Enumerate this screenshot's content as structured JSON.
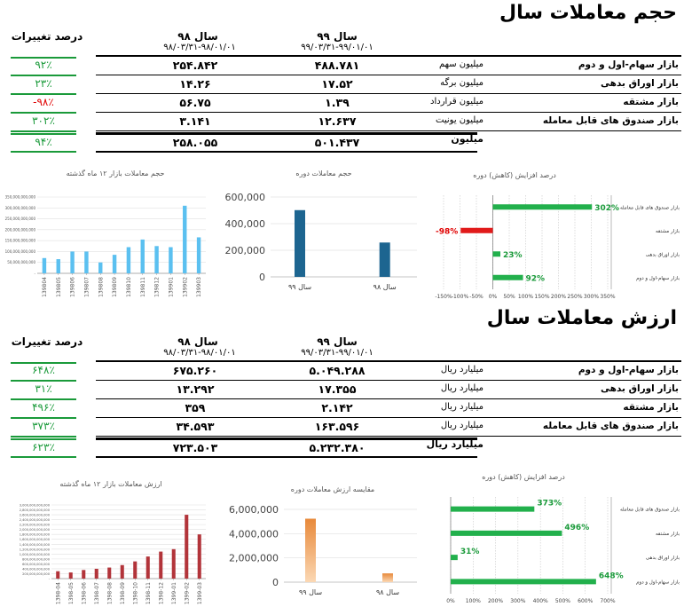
{
  "colors": {
    "green": "#1a9a3a",
    "red": "#e00000",
    "blue_light": "#5bc0f0",
    "blue_dark": "#1d6590",
    "green_bar": "#22b04c",
    "red_bar": "#e11a1a",
    "maroon": "#b2343a",
    "orange": "#f0a050"
  },
  "volume": {
    "title": "حجم معاملات سال",
    "change_header": "درصد تغییرات",
    "col98": {
      "year": "سال ۹۸",
      "range": "۹۸/۰۳/۳۱-۹۸/۰۱/۰۱"
    },
    "col99": {
      "year": "سال ۹۹",
      "range": "۹۹/۰۳/۳۱-۹۹/۰۱/۰۱"
    },
    "rows": [
      {
        "label": "بازار سهام-اول و دوم",
        "unit": "میلیون سهم",
        "v99": "۴۸۸.۷۸۱",
        "v98": "۲۵۴.۸۴۲",
        "pct": "۹۲٪",
        "neg": false
      },
      {
        "label": "بازار اوراق بدهی",
        "unit": "میلیون برگه",
        "v99": "۱۷.۵۲",
        "v98": "۱۴.۲۶",
        "pct": "۲۳٪",
        "neg": false
      },
      {
        "label": "بازار مشتقه",
        "unit": "میلیون قرارداد",
        "v99": "۱.۳۹",
        "v98": "۵۶.۷۵",
        "pct": "-۹۸٪",
        "neg": true
      },
      {
        "label": "بازار صندوق های قابل معامله",
        "unit": "میلیون یونیت",
        "v99": "۱۲.۶۳۷",
        "v98": "۳.۱۴۱",
        "pct": "۳۰۲٪",
        "neg": false
      }
    ],
    "total": {
      "unit": "میلیون",
      "v99": "۵۰۱.۴۳۷",
      "v98": "۲۵۸.۰۵۵",
      "pct": "۹۴٪"
    }
  },
  "value": {
    "title": "ارزش معاملات سال",
    "change_header": "درصد تغییرات",
    "col98": {
      "year": "سال ۹۸",
      "range": "۹۸/۰۳/۳۱-۹۸/۰۱/۰۱"
    },
    "col99": {
      "year": "سال ۹۹",
      "range": "۹۹/۰۳/۳۱-۹۹/۰۱/۰۱"
    },
    "rows": [
      {
        "label": "بازار سهام-اول و دوم",
        "unit": "میلیارد ریال",
        "v99": "۵.۰۴۹.۲۸۸",
        "v98": "۶۷۵.۲۶۰",
        "pct": "۶۴۸٪"
      },
      {
        "label": "بازار اوراق بدهی",
        "unit": "میلیارد ریال",
        "v99": "۱۷.۳۵۵",
        "v98": "۱۳.۲۹۲",
        "pct": "۳۱٪"
      },
      {
        "label": "بازار مشتقه",
        "unit": "میلیارد ریال",
        "v99": "۲.۱۴۲",
        "v98": "۳۵۹",
        "pct": "۴۹۶٪"
      },
      {
        "label": "بازار صندوق های قابل معامله",
        "unit": "میلیارد ریال",
        "v99": "۱۶۳.۵۹۶",
        "v98": "۳۴.۵۹۳",
        "pct": "۳۷۳٪"
      }
    ],
    "total": {
      "unit": "میلیارد ریال",
      "v99": "۵.۲۳۲.۳۸۰",
      "v98": "۷۲۳.۵۰۳",
      "pct": "۶۲۳٪"
    }
  },
  "chart_data": [
    {
      "type": "bar",
      "title": "حجم معاملات بازار ۱۲ ماه گذشته",
      "categories": [
        "139804",
        "139805",
        "139806",
        "139807",
        "139808",
        "139809",
        "139810",
        "139811",
        "139812",
        "139901",
        "139902",
        "139903"
      ],
      "values": [
        70000000000,
        65000000000,
        100000000000,
        100000000000,
        50000000000,
        85000000000,
        120000000000,
        155000000000,
        125000000000,
        120000000000,
        310000000000,
        165000000000
      ],
      "ylim": [
        0,
        350000000000
      ],
      "yticks": [
        "350,000,000,000",
        "300,000,000,000",
        "250,000,000,000",
        "200,000,000,000",
        "150,000,000,000",
        "100,000,000,000",
        "50,000,000,000",
        "-"
      ]
    },
    {
      "type": "bar",
      "title": "حجم معاملات دوره",
      "categories": [
        "سال ۹۹",
        "سال ۹۸"
      ],
      "values": [
        501437,
        258055
      ],
      "ylim": [
        0,
        600000
      ],
      "yticks": [
        "600,000",
        "400,000",
        "200,000",
        "0"
      ]
    },
    {
      "type": "bar",
      "title": "درصد افزایش (کاهش) دوره",
      "orientation": "horizontal",
      "categories": [
        "بازار صندوق های قابل معامله",
        "بازار مشتقه",
        "بازار اوراق بدهی",
        "بازار سهام-اول و دوم"
      ],
      "values": [
        302,
        -98,
        23,
        92
      ],
      "labels": [
        "302%",
        "-98%",
        "23%",
        "92%"
      ],
      "xlim": [
        -150,
        350
      ],
      "xticks": [
        "-150%",
        "-100%",
        "-50%",
        "0%",
        "50%",
        "100%",
        "150%",
        "200%",
        "250%",
        "300%",
        "350%"
      ]
    },
    {
      "type": "bar",
      "title": "ارزش معاملات بازار ۱۲ ماه گذشته",
      "categories": [
        "1398-04",
        "1398-05",
        "1398-06",
        "1398-07",
        "1398-08",
        "1398-09",
        "1398-10",
        "1398-11",
        "1398-12",
        "1399-01",
        "1399-02",
        "1399-03"
      ],
      "values": [
        300000000000,
        250000000000,
        350000000000,
        400000000000,
        450000000000,
        550000000000,
        700000000000,
        900000000000,
        1100000000000,
        1200000000000,
        2600000000000,
        1800000000000
      ],
      "ylim": [
        0,
        3000000000000
      ],
      "yticks": [
        "3,000,000,000,000",
        "2,800,000,000,000",
        "2,600,000,000,000",
        "2,400,000,000,000",
        "2,200,000,000,000",
        "2,000,000,000,000",
        "1,800,000,000,000",
        "1,600,000,000,000",
        "1,400,000,000,000",
        "1,200,000,000,000",
        "1,000,000,000,000",
        "800,000,000,000",
        "600,000,000,000",
        "400,000,000,000",
        "200,000,000,000",
        "-"
      ]
    },
    {
      "type": "bar",
      "title": "مقایسه ارزش معاملات دوره",
      "categories": [
        "سال ۹۹",
        "سال ۹۸"
      ],
      "values": [
        5232380,
        723503
      ],
      "ylim": [
        0,
        6000000
      ],
      "yticks": [
        "6,000,000",
        "4,000,000",
        "2,000,000",
        "0"
      ]
    },
    {
      "type": "bar",
      "title": "درصد افزایش (کاهش) دوره",
      "orientation": "horizontal",
      "categories": [
        "بازار صندوق های قابل معامله",
        "بازار مشتقه",
        "بازار اوراق بدهی",
        "بازار سهام-اول و دوم"
      ],
      "values": [
        373,
        496,
        31,
        648
      ],
      "labels": [
        "373%",
        "496%",
        "31%",
        "648%"
      ],
      "xlim": [
        0,
        700
      ],
      "xticks": [
        "0%",
        "100%",
        "200%",
        "300%",
        "400%",
        "500%",
        "600%",
        "700%"
      ]
    }
  ]
}
